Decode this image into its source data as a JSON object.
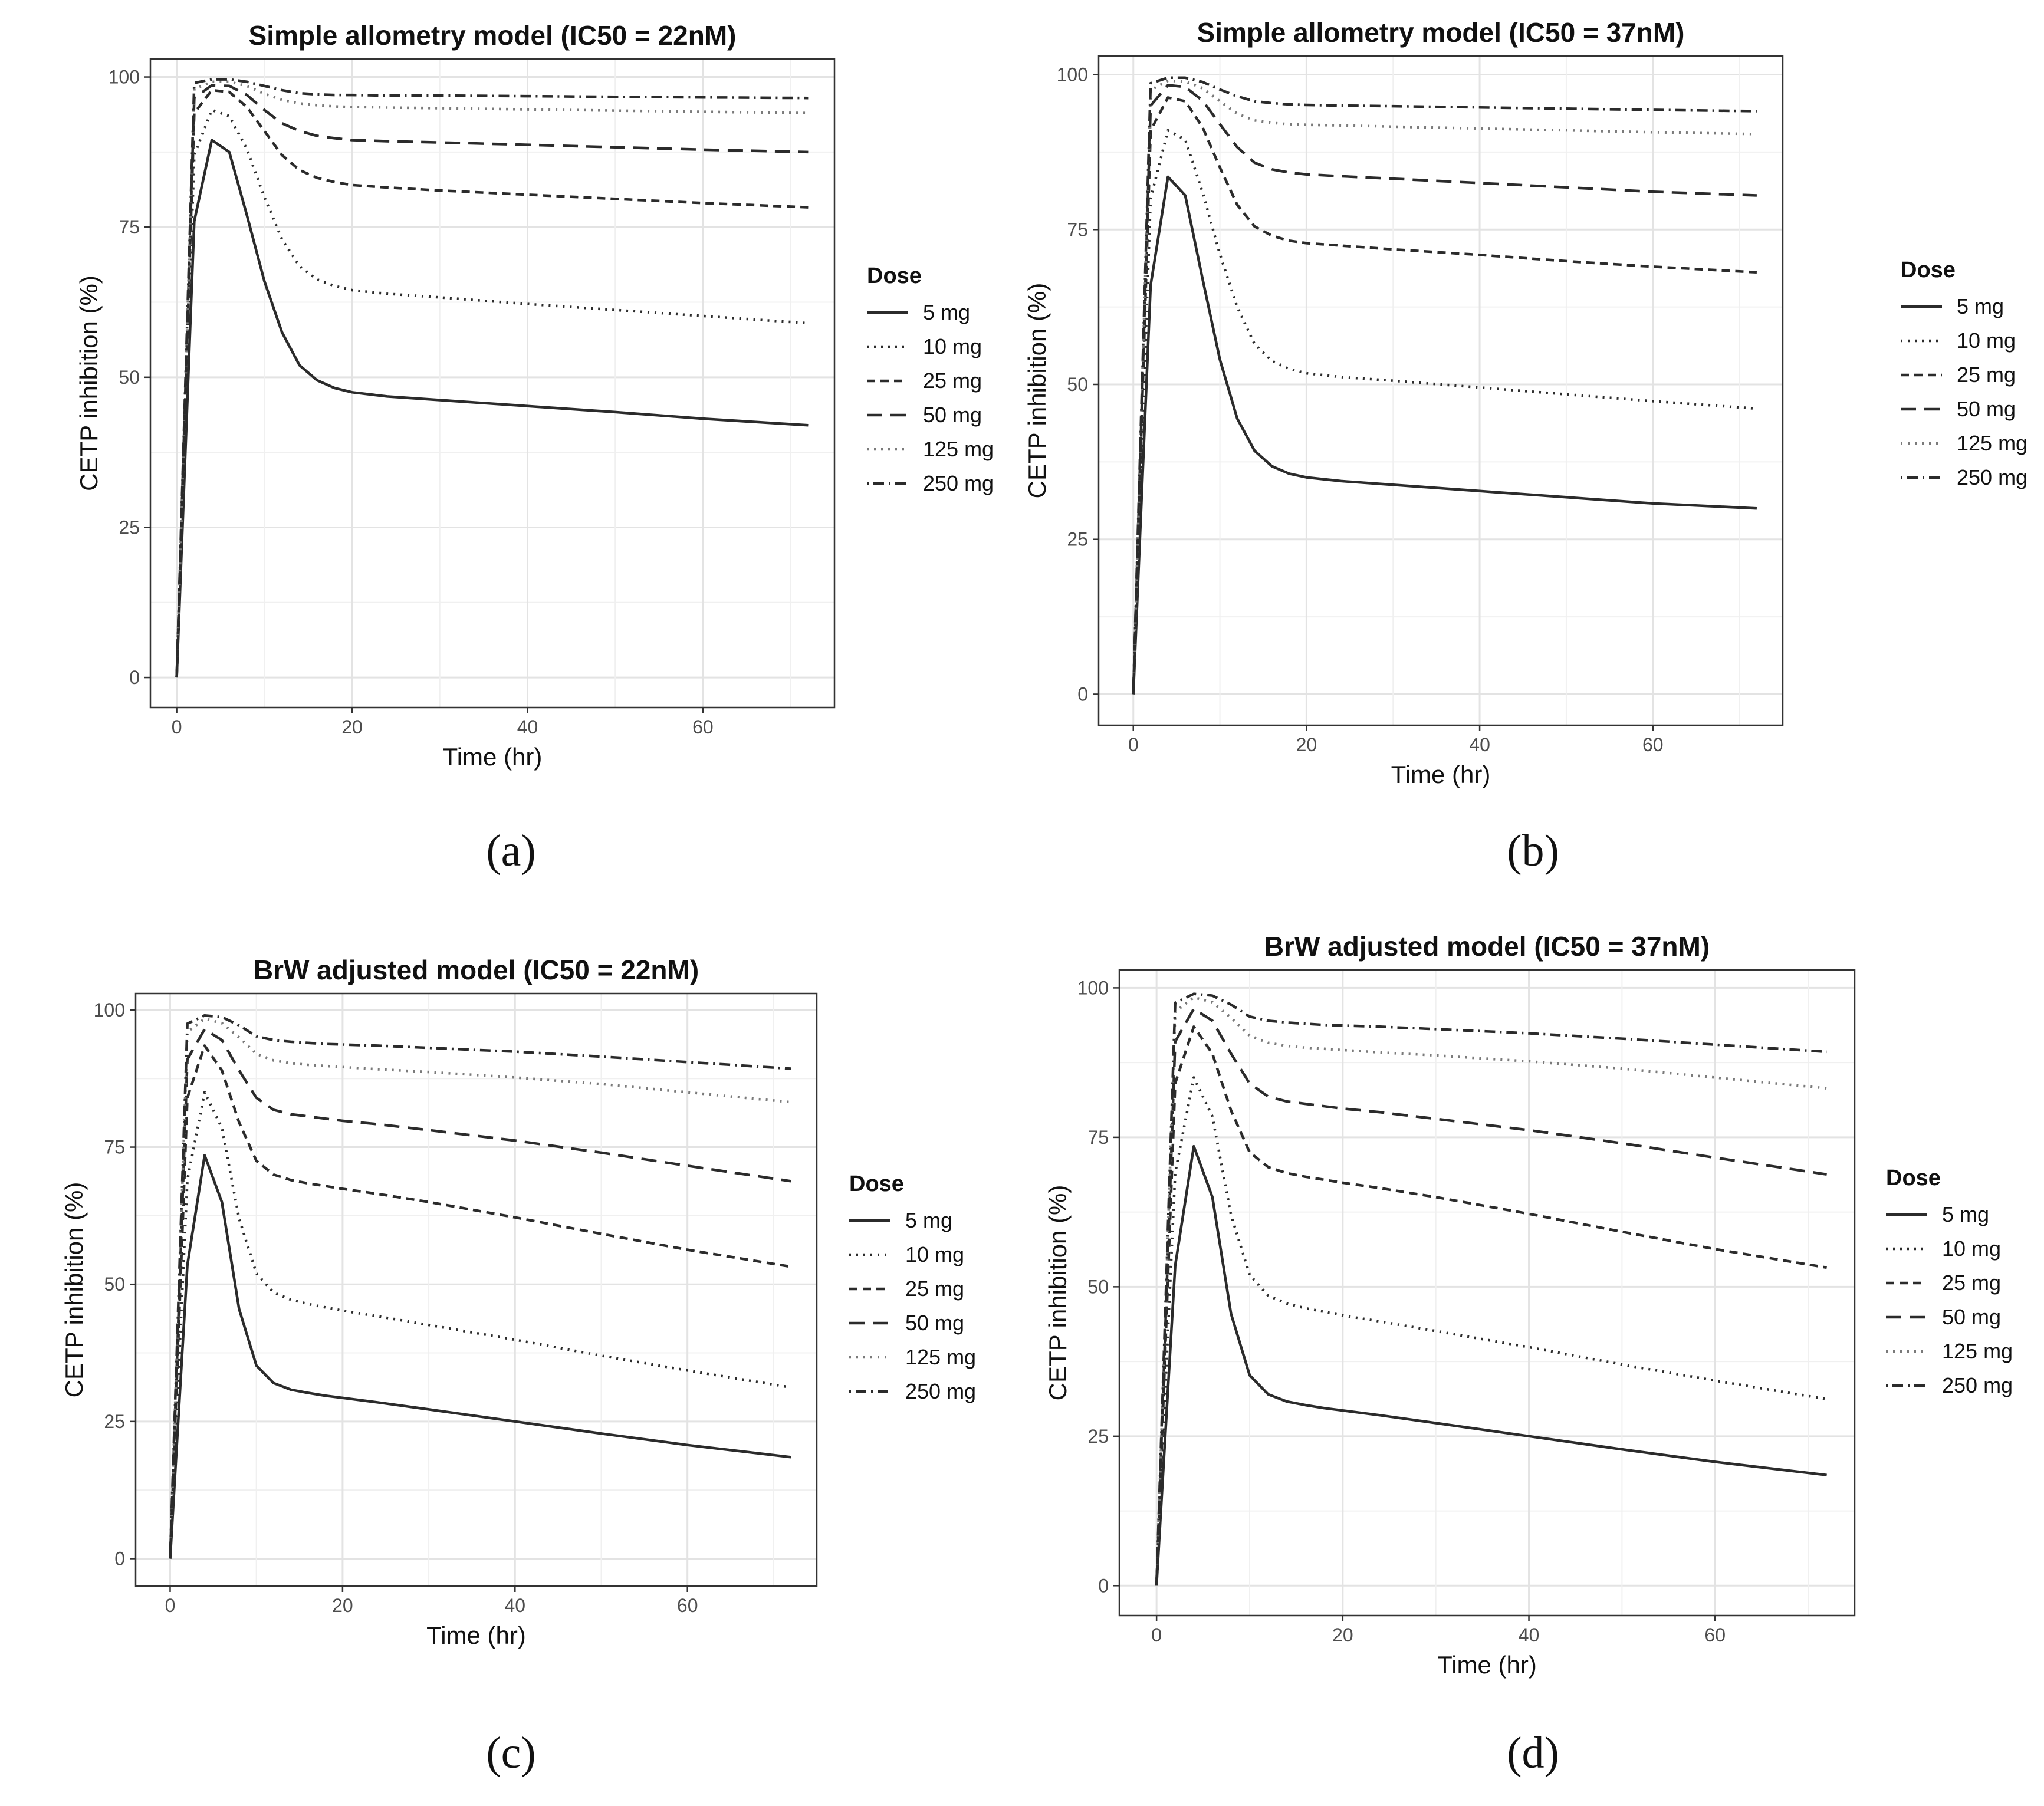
{
  "chart_data": [
    {
      "panel_label": "(a)",
      "type": "line",
      "title": "Simple allometry model (IC50 = 22nM)",
      "xlabel": "Time (hr)",
      "ylabel": "CETP inhibition (%)",
      "xlim": [
        -3,
        75
      ],
      "ylim": [
        -5,
        103
      ],
      "xticks": [
        0,
        20,
        40,
        60
      ],
      "yticks": [
        0,
        25,
        50,
        75,
        100
      ],
      "grid": true,
      "legend": {
        "title": "Dose",
        "position": "right"
      },
      "x": [
        0,
        2,
        4,
        6,
        8,
        10,
        12,
        14,
        16,
        18,
        20,
        24,
        30,
        40,
        50,
        60,
        72
      ],
      "series": [
        {
          "name": "5 mg",
          "dash": "solid",
          "color": "#2b2b2b",
          "values": [
            0,
            76,
            89.5,
            87.5,
            77,
            66,
            57.5,
            52,
            49.5,
            48.2,
            47.5,
            46.8,
            46.2,
            45.2,
            44.2,
            43.1,
            42
          ]
        },
        {
          "name": "10 mg",
          "dash": "dotted",
          "color": "#2b2b2b",
          "values": [
            0,
            87,
            94.5,
            93.5,
            88,
            80,
            73,
            68.5,
            66.3,
            65.2,
            64.5,
            63.9,
            63.3,
            62.2,
            61.2,
            60.2,
            59
          ]
        },
        {
          "name": "25 mg",
          "dash": "dashed",
          "color": "#2b2b2b",
          "values": [
            0,
            94,
            97.8,
            97.5,
            95,
            91,
            87,
            84.5,
            83.2,
            82.5,
            82,
            81.6,
            81.1,
            80.4,
            79.7,
            79,
            78.3
          ]
        },
        {
          "name": "50 mg",
          "dash": "longdash",
          "color": "#2b2b2b",
          "values": [
            0,
            96.5,
            98.6,
            98.5,
            97,
            94.5,
            92.3,
            91,
            90.2,
            89.8,
            89.5,
            89.3,
            89.1,
            88.7,
            88.3,
            87.9,
            87.5
          ]
        },
        {
          "name": "125 mg",
          "dash": "dotted-light",
          "color": "#7a7a7a",
          "values": [
            0,
            98,
            99.2,
            99.2,
            98.5,
            97.2,
            96.2,
            95.6,
            95.3,
            95.1,
            95,
            94.9,
            94.8,
            94.6,
            94.4,
            94.2,
            94
          ]
        },
        {
          "name": "250 mg",
          "dash": "dotdash",
          "color": "#2b2b2b",
          "values": [
            0,
            99,
            99.6,
            99.6,
            99.2,
            98.5,
            97.8,
            97.3,
            97.1,
            97,
            97,
            96.9,
            96.9,
            96.8,
            96.7,
            96.6,
            96.5
          ]
        }
      ]
    },
    {
      "panel_label": "(b)",
      "type": "line",
      "title": "Simple allometry model (IC50 = 37nM)",
      "xlabel": "Time (hr)",
      "ylabel": "CETP inhibition (%)",
      "xlim": [
        -4,
        75
      ],
      "ylim": [
        -5,
        103
      ],
      "xticks": [
        0,
        20,
        40,
        60
      ],
      "yticks": [
        0,
        25,
        50,
        75,
        100
      ],
      "grid": true,
      "legend": {
        "title": "Dose",
        "position": "right"
      },
      "x": [
        0,
        2,
        4,
        6,
        8,
        10,
        12,
        14,
        16,
        18,
        20,
        24,
        30,
        40,
        50,
        60,
        72
      ],
      "series": [
        {
          "name": "5 mg",
          "dash": "solid",
          "color": "#2b2b2b",
          "values": [
            0,
            66,
            83.5,
            80.5,
            67,
            54,
            44.5,
            39.3,
            36.8,
            35.6,
            35,
            34.4,
            33.8,
            32.8,
            31.8,
            30.8,
            30
          ]
        },
        {
          "name": "10 mg",
          "dash": "dotted",
          "color": "#2b2b2b",
          "values": [
            0,
            80,
            91,
            89.5,
            81,
            71,
            62.5,
            56.5,
            53.8,
            52.5,
            51.8,
            51.2,
            50.6,
            49.5,
            48.4,
            47.3,
            46.1
          ]
        },
        {
          "name": "25 mg",
          "dash": "dashed",
          "color": "#2b2b2b",
          "values": [
            0,
            91,
            96.3,
            95.7,
            91.5,
            85,
            79,
            75.5,
            74,
            73.2,
            72.8,
            72.4,
            71.8,
            70.9,
            69.9,
            69,
            68.1
          ]
        },
        {
          "name": "50 mg",
          "dash": "longdash",
          "color": "#2b2b2b",
          "values": [
            0,
            95,
            98.3,
            98,
            95.8,
            92,
            88.3,
            85.8,
            84.7,
            84.2,
            83.9,
            83.6,
            83.2,
            82.5,
            81.8,
            81.1,
            80.5
          ]
        },
        {
          "name": "125 mg",
          "dash": "dotted-light",
          "color": "#7a7a7a",
          "values": [
            0,
            97.5,
            99,
            98.9,
            97.8,
            95.7,
            93.7,
            92.6,
            92.2,
            92,
            91.9,
            91.8,
            91.6,
            91.3,
            91,
            90.7,
            90.4
          ]
        },
        {
          "name": "250 mg",
          "dash": "dotdash",
          "color": "#2b2b2b",
          "values": [
            0,
            98.6,
            99.5,
            99.5,
            98.8,
            97.6,
            96.5,
            95.7,
            95.4,
            95.2,
            95.1,
            95,
            94.9,
            94.7,
            94.5,
            94.3,
            94.1
          ]
        }
      ]
    },
    {
      "panel_label": "(c)",
      "type": "line",
      "title": "BrW adjusted model (IC50 = 22nM)",
      "xlabel": "Time (hr)",
      "ylabel": "CETP inhibition (%)",
      "xlim": [
        -4,
        75
      ],
      "ylim": [
        -5,
        103
      ],
      "xticks": [
        0,
        20,
        40,
        60
      ],
      "yticks": [
        0,
        25,
        50,
        75,
        100
      ],
      "grid": true,
      "legend": {
        "title": "Dose",
        "position": "right"
      },
      "x": [
        0,
        2,
        4,
        6,
        8,
        10,
        12,
        14,
        16,
        18,
        20,
        24,
        30,
        40,
        50,
        60,
        72
      ],
      "series": [
        {
          "name": "5 mg",
          "dash": "solid",
          "color": "#2b2b2b",
          "values": [
            0,
            53.5,
            73.5,
            65,
            45.5,
            35.2,
            32,
            30.8,
            30.2,
            29.7,
            29.3,
            28.5,
            27.2,
            25,
            22.8,
            20.7,
            18.5
          ]
        },
        {
          "name": "10 mg",
          "dash": "dotted",
          "color": "#2b2b2b",
          "values": [
            0,
            69,
            85,
            78.5,
            62,
            52,
            48.5,
            47.2,
            46.4,
            45.8,
            45.2,
            44.2,
            42.6,
            39.9,
            37,
            34.3,
            31.2
          ]
        },
        {
          "name": "25 mg",
          "dash": "dashed",
          "color": "#2b2b2b",
          "values": [
            0,
            84,
            93.5,
            89,
            79.5,
            72.5,
            70,
            69,
            68.4,
            67.9,
            67.4,
            66.5,
            65,
            62.2,
            59.2,
            56.3,
            53.2
          ]
        },
        {
          "name": "50 mg",
          "dash": "longdash",
          "color": "#2b2b2b",
          "values": [
            0,
            91,
            96.5,
            94.5,
            89,
            84,
            81.8,
            81,
            80.6,
            80.2,
            79.8,
            79.2,
            78.1,
            76.2,
            74,
            71.6,
            68.8
          ]
        },
        {
          "name": "125 mg",
          "dash": "dotted-light",
          "color": "#7a7a7a",
          "values": [
            0,
            96,
            98.4,
            97.6,
            95,
            92,
            90.8,
            90.3,
            90,
            89.8,
            89.6,
            89.2,
            88.7,
            87.7,
            86.5,
            85,
            83.2
          ]
        },
        {
          "name": "250 mg",
          "dash": "dotdash",
          "color": "#2b2b2b",
          "values": [
            0,
            97.5,
            99,
            98.7,
            97.2,
            95.2,
            94.5,
            94.2,
            94,
            93.8,
            93.7,
            93.5,
            93.1,
            92.4,
            91.5,
            90.5,
            89.3
          ]
        }
      ]
    },
    {
      "panel_label": "(d)",
      "type": "line",
      "title": "BrW adjusted model (IC50 = 37nM)",
      "xlabel": "Time (hr)",
      "ylabel": "CETP inhibition (%)",
      "xlim": [
        -4,
        75
      ],
      "ylim": [
        -5,
        103
      ],
      "xticks": [
        0,
        20,
        40,
        60
      ],
      "yticks": [
        0,
        25,
        50,
        75,
        100
      ],
      "grid": true,
      "legend": {
        "title": "Dose",
        "position": "right"
      },
      "x": [
        0,
        2,
        4,
        6,
        8,
        10,
        12,
        14,
        16,
        18,
        20,
        24,
        30,
        40,
        50,
        60,
        72
      ],
      "series": [
        {
          "name": "5 mg",
          "dash": "solid",
          "color": "#2b2b2b",
          "values": [
            0,
            53.5,
            73.5,
            65,
            45.5,
            35.2,
            32,
            30.8,
            30.2,
            29.7,
            29.3,
            28.5,
            27.2,
            25,
            22.8,
            20.7,
            18.5
          ]
        },
        {
          "name": "10 mg",
          "dash": "dotted",
          "color": "#2b2b2b",
          "values": [
            0,
            69,
            85,
            78.5,
            62,
            52,
            48.5,
            47.2,
            46.4,
            45.8,
            45.2,
            44.2,
            42.6,
            39.9,
            37,
            34.3,
            31.2
          ]
        },
        {
          "name": "25 mg",
          "dash": "dashed",
          "color": "#2b2b2b",
          "values": [
            0,
            84,
            93.5,
            89,
            79.5,
            72.5,
            70,
            69,
            68.4,
            67.9,
            67.4,
            66.5,
            65,
            62.2,
            59.2,
            56.3,
            53.2
          ]
        },
        {
          "name": "50 mg",
          "dash": "longdash",
          "color": "#2b2b2b",
          "values": [
            0,
            91,
            96.5,
            94.5,
            89,
            84,
            81.8,
            81,
            80.6,
            80.2,
            79.8,
            79.2,
            78.1,
            76.2,
            74,
            71.6,
            68.8
          ]
        },
        {
          "name": "125 mg",
          "dash": "dotted-light",
          "color": "#7a7a7a",
          "values": [
            0,
            96,
            98.4,
            97.6,
            95,
            92,
            90.8,
            90.3,
            90,
            89.8,
            89.6,
            89.2,
            88.7,
            87.7,
            86.5,
            85,
            83.2
          ]
        },
        {
          "name": "250 mg",
          "dash": "dotdash",
          "color": "#2b2b2b",
          "values": [
            0,
            97.5,
            99,
            98.7,
            97.2,
            95.2,
            94.5,
            94.2,
            94,
            93.8,
            93.7,
            93.5,
            93.1,
            92.4,
            91.5,
            90.5,
            89.3
          ]
        }
      ]
    }
  ]
}
